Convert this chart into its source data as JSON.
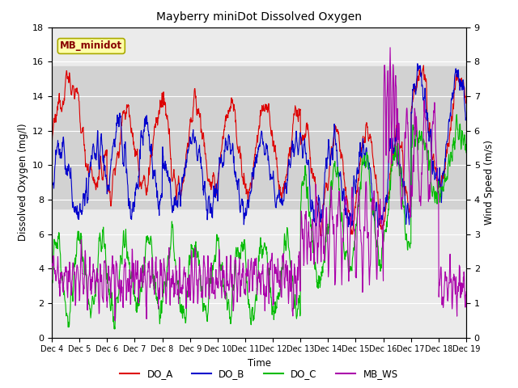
{
  "title": "Mayberry miniDot Dissolved Oxygen",
  "xlabel": "Time",
  "ylabel_left": "Dissolved Oxygen (mg/l)",
  "ylabel_right": "Wind Speed (m/s)",
  "annotation": "MB_minidot",
  "ylim_left": [
    0,
    18
  ],
  "ylim_right": [
    0.0,
    9.0
  ],
  "yticks_left": [
    0,
    2,
    4,
    6,
    8,
    10,
    12,
    14,
    16,
    18
  ],
  "yticks_right": [
    0.0,
    1.0,
    2.0,
    3.0,
    4.0,
    5.0,
    6.0,
    7.0,
    8.0,
    9.0
  ],
  "xtick_labels": [
    "Dec 4",
    "Dec 5",
    "Dec 6",
    "Dec 7",
    "Dec 8",
    "Dec 9",
    "Dec 10",
    "Dec 11",
    "Dec 12",
    "Dec 13",
    "Dec 14",
    "Dec 15",
    "Dec 16",
    "Dec 17",
    "Dec 18",
    "Dec 19"
  ],
  "shade_band_lo": 7.5,
  "shade_band_hi": 15.75,
  "colors": {
    "DO_A": "#dd0000",
    "DO_B": "#0000cc",
    "DO_C": "#00bb00",
    "MB_WS": "#aa00aa"
  },
  "line_width": 0.8,
  "background_color": "#ffffff",
  "plot_bg_color": "#ebebeb",
  "shade_color": "#d2d2d2",
  "grid_color": "#ffffff",
  "annotation_facecolor": "#ffffaa",
  "annotation_edgecolor": "#aaaa00",
  "annotation_textcolor": "#880000"
}
